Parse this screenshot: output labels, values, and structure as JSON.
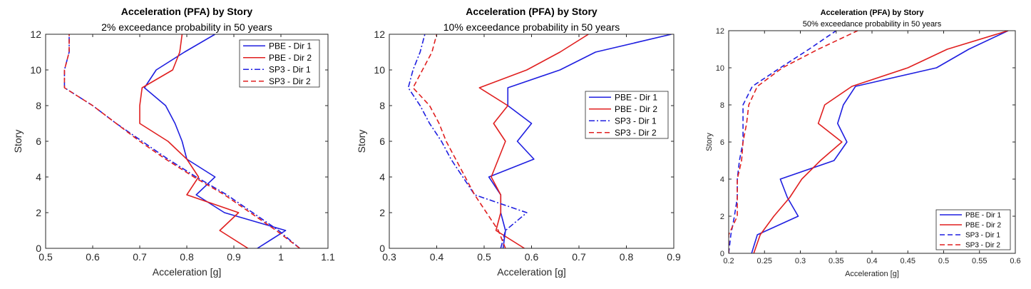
{
  "chart_data": [
    {
      "type": "line",
      "title": "Acceleration (PFA) by Story",
      "subtitle": "2% exceedance probability in 50 years",
      "xlabel": "Acceleration [g]",
      "ylabel": "Story",
      "xlim": [
        0.5,
        1.1
      ],
      "ylim": [
        0,
        12
      ],
      "xticks": [
        "0.5",
        "0.6",
        "0.7",
        "0.8",
        "0.9",
        "1",
        "1.1"
      ],
      "yticks": [
        "0",
        "2",
        "4",
        "6",
        "8",
        "10",
        "12"
      ],
      "grid": false,
      "legend_position": "top-right",
      "series": [
        {
          "name": "PBE - Dir 1",
          "color": "#1f1fe0",
          "dash": "solid",
          "x": [
            0.95,
            1.01,
            0.88,
            0.82,
            0.86,
            0.8,
            0.79,
            0.775,
            0.755,
            0.71,
            0.735,
            0.795,
            0.86
          ],
          "y": [
            0,
            1,
            2,
            3,
            4,
            5,
            6,
            7,
            8,
            9,
            10,
            11,
            12
          ]
        },
        {
          "name": "PBE - Dir 2",
          "color": "#e01f1f",
          "dash": "solid",
          "x": [
            0.93,
            0.87,
            0.91,
            0.8,
            0.825,
            0.8,
            0.76,
            0.7,
            0.7,
            0.705,
            0.77,
            0.785,
            0.79
          ],
          "y": [
            0,
            1,
            2,
            3,
            4,
            5,
            6,
            7,
            8,
            9,
            10,
            11,
            12
          ]
        },
        {
          "name": "SP3 - Dir 1",
          "color": "#1f1fe0",
          "dash": "dashdot",
          "x": [
            1.04,
            0.995,
            0.94,
            0.885,
            0.82,
            0.76,
            0.705,
            0.65,
            0.6,
            0.54,
            0.54,
            0.55,
            0.55
          ],
          "y": [
            0,
            1,
            2,
            3,
            4,
            5,
            6,
            7,
            8,
            9,
            10,
            11,
            12
          ]
        },
        {
          "name": "SP3 - Dir 2",
          "color": "#e01f1f",
          "dash": "dashed",
          "x": [
            1.04,
            0.99,
            0.935,
            0.88,
            0.815,
            0.755,
            0.7,
            0.65,
            0.6,
            0.54,
            0.54,
            0.55,
            0.55
          ],
          "y": [
            0,
            1,
            2,
            3,
            4,
            5,
            6,
            7,
            8,
            9,
            10,
            11,
            12
          ]
        }
      ]
    },
    {
      "type": "line",
      "title": "Acceleration (PFA) by Story",
      "subtitle": "10% exceedance probability in 50 years",
      "xlabel": "Acceleration [g]",
      "ylabel": "Story",
      "xlim": [
        0.3,
        0.9
      ],
      "ylim": [
        0,
        12
      ],
      "xticks": [
        "0.3",
        "0.4",
        "0.5",
        "0.6",
        "0.7",
        "0.8",
        "0.9"
      ],
      "yticks": [
        "0",
        "2",
        "4",
        "6",
        "8",
        "10",
        "12"
      ],
      "grid": false,
      "legend_position": "center-right",
      "series": [
        {
          "name": "PBE - Dir 1",
          "color": "#1f1fe0",
          "dash": "solid",
          "x": [
            0.54,
            0.545,
            0.535,
            0.535,
            0.51,
            0.605,
            0.57,
            0.6,
            0.55,
            0.55,
            0.66,
            0.735,
            0.895
          ],
          "y": [
            0,
            1,
            2,
            3,
            4,
            5,
            6,
            7,
            8,
            9,
            10,
            11,
            12
          ]
        },
        {
          "name": "PBE - Dir 2",
          "color": "#e01f1f",
          "dash": "solid",
          "x": [
            0.585,
            0.525,
            0.535,
            0.535,
            0.515,
            0.53,
            0.545,
            0.52,
            0.55,
            0.49,
            0.59,
            0.66,
            0.72
          ],
          "y": [
            0,
            1,
            2,
            3,
            4,
            5,
            6,
            7,
            8,
            9,
            10,
            11,
            12
          ]
        },
        {
          "name": "SP3 - Dir 1",
          "color": "#1f1fe0",
          "dash": "dashdot",
          "x": [
            0.535,
            0.545,
            0.59,
            0.48,
            0.455,
            0.43,
            0.41,
            0.385,
            0.365,
            0.34,
            0.35,
            0.365,
            0.375
          ],
          "y": [
            0,
            1,
            2,
            3,
            4,
            5,
            6,
            7,
            8,
            9,
            10,
            11,
            12
          ]
        },
        {
          "name": "SP3 - Dir 2",
          "color": "#e01f1f",
          "dash": "dashed",
          "x": [
            0.545,
            0.53,
            0.505,
            0.48,
            0.46,
            0.44,
            0.42,
            0.405,
            0.385,
            0.35,
            0.37,
            0.39,
            0.4
          ],
          "y": [
            0,
            1,
            2,
            3,
            4,
            5,
            6,
            7,
            8,
            9,
            10,
            11,
            12
          ]
        }
      ]
    },
    {
      "type": "line",
      "title": "Acceleration (PFA) by Story",
      "subtitle": "50% exceedance probability in 50 years",
      "xlabel": "Acceleration [g]",
      "ylabel": "Story",
      "xlim": [
        0.2,
        0.6
      ],
      "ylim": [
        0,
        12
      ],
      "xticks": [
        "0.2",
        "0.25",
        "0.3",
        "0.35",
        "0.4",
        "0.45",
        "0.5",
        "0.55",
        "0.6"
      ],
      "yticks": [
        "0",
        "2",
        "4",
        "6",
        "8",
        "10",
        "12"
      ],
      "grid": false,
      "legend_position": "bottom-right",
      "series": [
        {
          "name": "PBE - Dir 1",
          "color": "#1f1fe0",
          "dash": "solid",
          "x": [
            0.232,
            0.24,
            0.297,
            0.282,
            0.272,
            0.347,
            0.365,
            0.352,
            0.36,
            0.377,
            0.49,
            0.535,
            0.59
          ],
          "y": [
            0,
            1,
            2,
            3,
            4,
            5,
            6,
            7,
            8,
            9,
            10,
            11,
            12
          ]
        },
        {
          "name": "PBE - Dir 2",
          "color": "#e01f1f",
          "dash": "solid",
          "x": [
            0.235,
            0.244,
            0.263,
            0.285,
            0.302,
            0.328,
            0.358,
            0.325,
            0.334,
            0.372,
            0.45,
            0.505,
            0.59
          ],
          "y": [
            0,
            1,
            2,
            3,
            4,
            5,
            6,
            7,
            8,
            9,
            10,
            11,
            12
          ]
        },
        {
          "name": "SP3 - Dir 1",
          "color": "#1f1fe0",
          "dash": "dashed",
          "x": [
            0.2,
            0.203,
            0.208,
            0.212,
            0.212,
            0.215,
            0.22,
            0.22,
            0.22,
            0.233,
            0.272,
            0.312,
            0.35
          ],
          "y": [
            0,
            1,
            2,
            3,
            4,
            5,
            6,
            7,
            8,
            9,
            10,
            11,
            12
          ]
        },
        {
          "name": "SP3 - Dir 2",
          "color": "#e01f1f",
          "dash": "dashed",
          "x": [
            0.2,
            0.2,
            0.212,
            0.212,
            0.212,
            0.218,
            0.22,
            0.225,
            0.228,
            0.24,
            0.275,
            0.325,
            0.38
          ],
          "y": [
            0,
            1,
            2,
            3,
            4,
            5,
            6,
            7,
            8,
            9,
            10,
            11,
            12
          ]
        }
      ]
    }
  ]
}
